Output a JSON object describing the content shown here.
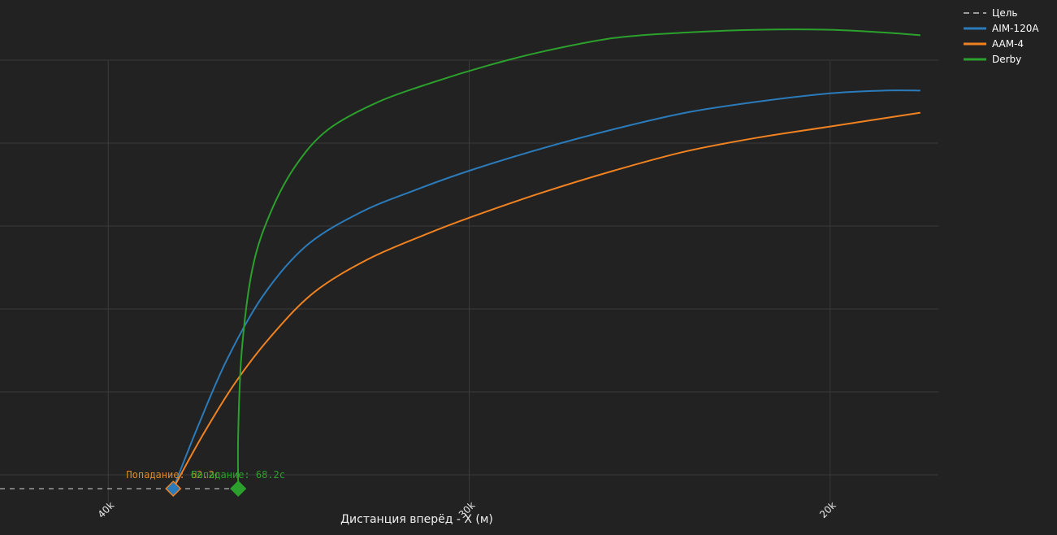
{
  "chart_data": {
    "type": "line",
    "title": "",
    "xlabel": "Дистанция вперёд - X (м)",
    "ylabel": "",
    "x_reversed": true,
    "xlim": [
      43000,
      17000
    ],
    "ylim": [
      -1000,
      16000
    ],
    "x_ticks": [
      40000,
      30000,
      20000
    ],
    "x_tick_labels": [
      "40k",
      "30k",
      "20k"
    ],
    "y_grid": [
      0,
      3000,
      6000,
      9000,
      12000,
      15000
    ],
    "grid": true,
    "legend_position": "top-right",
    "target": {
      "name": "Цель",
      "color": "#9a9a9a",
      "dash": true,
      "x": [
        43000,
        36500
      ],
      "y": [
        -500,
        -500
      ]
    },
    "series": [
      {
        "name": "AIM-120A",
        "color": "#2b7bba",
        "x": [
          38200,
          37500,
          36700,
          35700,
          34500,
          33000,
          31500,
          30000,
          28000,
          26000,
          24000,
          22000,
          20000,
          18500,
          17500
        ],
        "y": [
          -500,
          1800,
          4200,
          6500,
          8300,
          9500,
          10300,
          11000,
          11800,
          12500,
          13100,
          13500,
          13800,
          13900,
          13900
        ]
      },
      {
        "name": "AAM-4",
        "color": "#f08221",
        "x": [
          38200,
          37400,
          36500,
          35500,
          34300,
          32800,
          31200,
          30000,
          28000,
          26000,
          24000,
          22000,
          20000,
          18500,
          17500
        ],
        "y": [
          -500,
          1400,
          3300,
          5000,
          6600,
          7800,
          8700,
          9300,
          10200,
          11000,
          11700,
          12200,
          12600,
          12900,
          13100
        ]
      },
      {
        "name": "Derby",
        "color": "#2ca02c",
        "x": [
          36400,
          36400,
          36300,
          36000,
          35500,
          34800,
          33900,
          32500,
          31000,
          29500,
          28000,
          26000,
          24000,
          22000,
          20000,
          18500,
          17500
        ],
        "y": [
          -500,
          1500,
          4500,
          7500,
          9500,
          11200,
          12500,
          13500,
          14200,
          14800,
          15300,
          15800,
          16000,
          16100,
          16100,
          16000,
          15900
        ]
      }
    ],
    "annotations": [
      {
        "text": "Попадание: 62.2с",
        "color": "#d88a2b",
        "x": 38200,
        "y": -500
      },
      {
        "text": "Попадание: 68.2с",
        "color": "#2ca02c",
        "x": 36400,
        "y": -500
      }
    ],
    "hit_markers": [
      {
        "series": "AIM-120A",
        "x": 38200,
        "y": -500,
        "fill": "#2b7bba",
        "stroke": "#f08221"
      },
      {
        "series": "Derby",
        "x": 36400,
        "y": -500,
        "fill": "#2ca02c",
        "stroke": "#2ca02c"
      }
    ]
  }
}
